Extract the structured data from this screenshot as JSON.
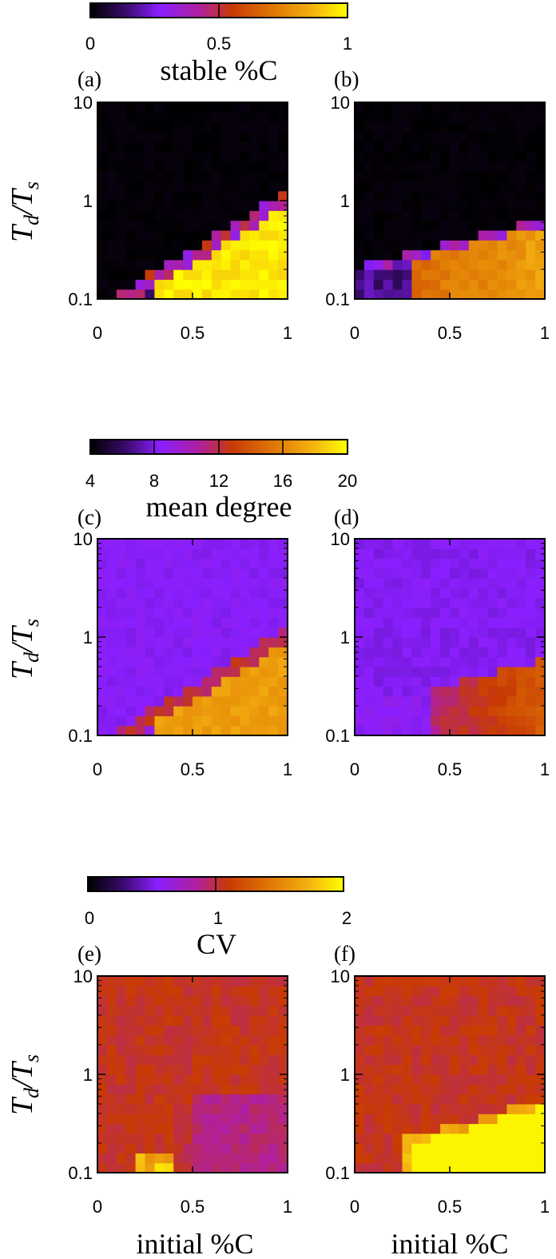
{
  "figure": {
    "ylabel_main": "T",
    "ylabel_sub1": "d",
    "ylabel_slash": "/",
    "ylabel_main2": "T",
    "ylabel_sub2": "s",
    "xlabel": "initial %C"
  },
  "rows": [
    {
      "colorbar": {
        "label": "stable %C",
        "ticks": [
          "0",
          "0.5",
          "1"
        ],
        "range": [
          0,
          1
        ],
        "stops": [
          "#000000",
          "#3a0b6e",
          "#8a1fff",
          "#b0209a",
          "#c83a05",
          "#e07a05",
          "#f4b010",
          "#ffff00"
        ]
      },
      "panels": [
        {
          "label": "(a)"
        },
        {
          "label": "(b)"
        }
      ]
    },
    {
      "colorbar": {
        "label": "mean degree",
        "ticks": [
          "4",
          "8",
          "12",
          "16",
          "20"
        ],
        "range": [
          4,
          20
        ],
        "stops": [
          "#000000",
          "#3a0b6e",
          "#8a1fff",
          "#b0209a",
          "#c83a05",
          "#e07a05",
          "#f4b010",
          "#ffff00"
        ]
      },
      "panels": [
        {
          "label": "(c)"
        },
        {
          "label": "(d)"
        }
      ]
    },
    {
      "colorbar": {
        "label": "CV",
        "ticks": [
          "0",
          "1",
          "2"
        ],
        "range": [
          0,
          2
        ],
        "stops": [
          "#000000",
          "#3a0b6e",
          "#8a1fff",
          "#b0209a",
          "#c83a05",
          "#e07a05",
          "#f4b010",
          "#ffff00"
        ]
      },
      "panels": [
        {
          "label": "(e)"
        },
        {
          "label": "(f)"
        }
      ]
    }
  ],
  "chart_data": [
    {
      "type": "heatmap",
      "panel": "(a)",
      "xlabel": "",
      "ylabel": "Td/Ts",
      "x_ticks": [
        "0",
        "0.5",
        "1"
      ],
      "y_ticks": [
        "0.1",
        "1",
        "10"
      ],
      "xlim": [
        0,
        1
      ],
      "ylim": [
        0.1,
        10
      ],
      "y_scale": "log",
      "colorbar_label": "stable %C",
      "grid_size": [
        20,
        20
      ]
    },
    {
      "type": "heatmap",
      "panel": "(b)",
      "xlabel": "",
      "ylabel": "",
      "x_ticks": [
        "0",
        "0.5",
        "1"
      ],
      "y_ticks": [
        "0.1",
        "1",
        "10"
      ],
      "xlim": [
        0,
        1
      ],
      "ylim": [
        0.1,
        10
      ],
      "y_scale": "log",
      "colorbar_label": "stable %C",
      "grid_size": [
        20,
        20
      ]
    },
    {
      "type": "heatmap",
      "panel": "(c)",
      "xlabel": "",
      "ylabel": "Td/Ts",
      "x_ticks": [
        "0",
        "0.5",
        "1"
      ],
      "y_ticks": [
        "0.1",
        "1",
        "10"
      ],
      "xlim": [
        0,
        1
      ],
      "ylim": [
        0.1,
        10
      ],
      "y_scale": "log",
      "colorbar_label": "mean degree",
      "grid_size": [
        20,
        20
      ]
    },
    {
      "type": "heatmap",
      "panel": "(d)",
      "xlabel": "",
      "ylabel": "",
      "x_ticks": [
        "0",
        "0.5",
        "1"
      ],
      "y_ticks": [
        "0.1",
        "1",
        "10"
      ],
      "xlim": [
        0,
        1
      ],
      "ylim": [
        0.1,
        10
      ],
      "y_scale": "log",
      "colorbar_label": "mean degree",
      "grid_size": [
        20,
        20
      ]
    },
    {
      "type": "heatmap",
      "panel": "(e)",
      "xlabel": "initial %C",
      "ylabel": "Td/Ts",
      "x_ticks": [
        "0",
        "0.5",
        "1"
      ],
      "y_ticks": [
        "0.1",
        "1",
        "10"
      ],
      "xlim": [
        0,
        1
      ],
      "ylim": [
        0.1,
        10
      ],
      "y_scale": "log",
      "colorbar_label": "CV",
      "grid_size": [
        20,
        20
      ]
    },
    {
      "type": "heatmap",
      "panel": "(f)",
      "xlabel": "initial %C",
      "ylabel": "",
      "x_ticks": [
        "0",
        "0.5",
        "1"
      ],
      "y_ticks": [
        "0.1",
        "1",
        "10"
      ],
      "xlim": [
        0,
        1
      ],
      "ylim": [
        0.1,
        10
      ],
      "y_scale": "log",
      "colorbar_label": "CV",
      "grid_size": [
        20,
        20
      ]
    }
  ]
}
